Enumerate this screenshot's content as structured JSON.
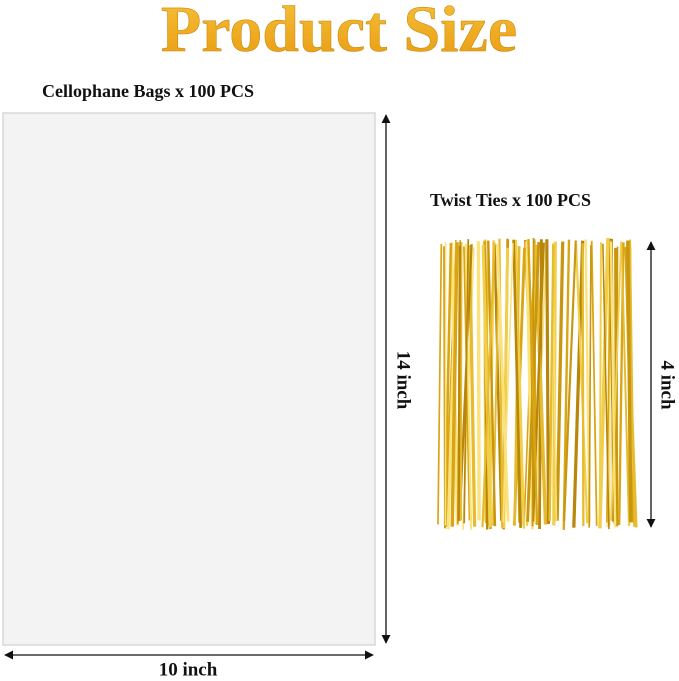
{
  "header": {
    "title": "Product Size"
  },
  "bags": {
    "label": "Cellophane Bags x 100 PCS",
    "height": "14 inch",
    "width": "10 inch"
  },
  "ties": {
    "label": "Twist Ties x 100 PCS",
    "height": "4 inch"
  }
}
